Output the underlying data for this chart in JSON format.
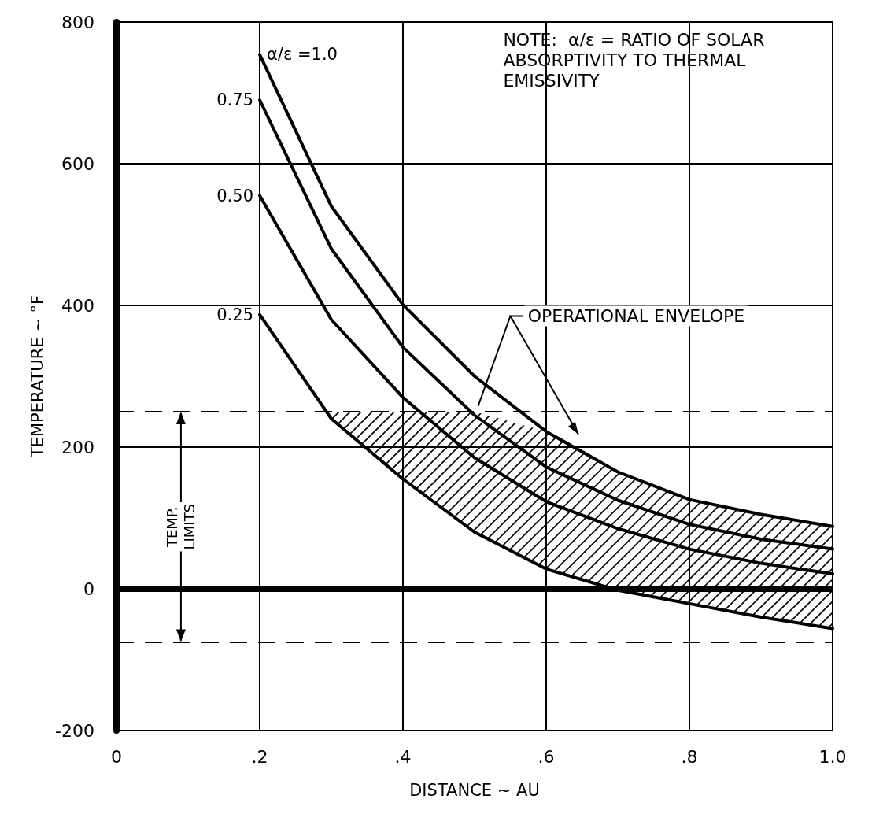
{
  "chart_data": {
    "type": "line",
    "xlabel": "DISTANCE ~ AU",
    "ylabel": "TEMPERATURE ~ °F",
    "x": [
      0.2,
      0.3,
      0.4,
      0.5,
      0.6,
      0.7,
      0.8,
      0.9,
      1.0
    ],
    "series": [
      {
        "name": "α/ε =1.0",
        "color": "#000000",
        "values": [
          754,
          540,
          401,
          300,
          222,
          165,
          126,
          105,
          88
        ]
      },
      {
        "name": "0.75",
        "color": "#000000",
        "values": [
          690,
          480,
          341,
          245,
          172,
          125,
          91,
          70,
          56
        ]
      },
      {
        "name": "0.50",
        "color": "#000000",
        "values": [
          555,
          380,
          270,
          185,
          123,
          85,
          56,
          36,
          21
        ],
        "lower": [
          null,
          240,
          155,
          80,
          28,
          -2,
          -21,
          -40,
          -56
        ],
        "upper": [
          null,
          250,
          250,
          250,
          222,
          165,
          126,
          105,
          88
        ]
      },
      {
        "name": "0.25",
        "color": "#000000",
        "values": [
          387,
          240,
          155,
          80,
          28,
          -2,
          -21,
          -40,
          -56
        ]
      }
    ],
    "xlim": [
      0,
      1.0
    ],
    "xticks": [
      0,
      {
        "value": 0.2,
        "label": ".2"
      },
      {
        "value": 0.4,
        "label": ".4"
      },
      {
        "value": 0.6,
        "label": ".6"
      },
      {
        "value": 0.8,
        "label": ".8"
      },
      {
        "value": 1.0,
        "label": "1.0"
      }
    ],
    "ylim": [
      -200,
      800
    ],
    "yticks": [
      -200,
      0,
      200,
      400,
      600,
      800
    ],
    "grid": true,
    "marker": "none",
    "line_style": "solid",
    "ref_lines": [
      {
        "axis": "y",
        "value": 0,
        "line_style": "solid",
        "color": "#000000"
      },
      {
        "axis": "y",
        "value": 250,
        "line_style": "dashed",
        "color": "#000000"
      },
      {
        "axis": "y",
        "value": -75,
        "line_style": "dashed",
        "color": "#000000"
      }
    ],
    "annotations": [
      "NOTE:  α/ε = RATIO OF SOLAR ABSORPTIVITY TO THERMAL EMISSIVITY",
      "TEMP. LIMITS",
      "OPERATIONAL ENVELOPE"
    ]
  }
}
